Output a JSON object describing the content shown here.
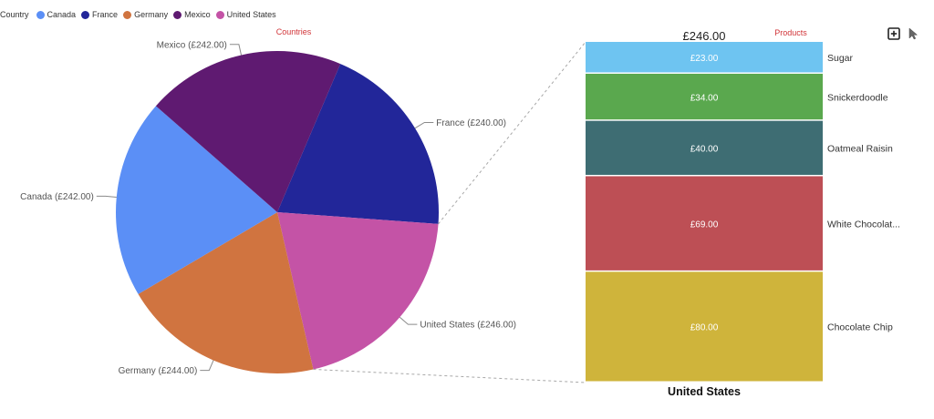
{
  "legend": {
    "title": "Country",
    "items": [
      {
        "label": "Canada",
        "color": "#5b8ff6"
      },
      {
        "label": "France",
        "color": "#222699"
      },
      {
        "label": "Germany",
        "color": "#d07440"
      },
      {
        "label": "Mexico",
        "color": "#5f1a71"
      },
      {
        "label": "United States",
        "color": "#c453a6"
      }
    ]
  },
  "toolbar": {
    "expand_icon": "plus-square-icon",
    "pointer_icon": "cursor-arrow-icon"
  },
  "chart_data": [
    {
      "type": "pie",
      "title": "Countries",
      "series": [
        {
          "category": "France",
          "value": 240,
          "label": "France (£240.00)",
          "color": "#222699"
        },
        {
          "category": "United States",
          "value": 246,
          "label": "United States (£246.00)",
          "color": "#c453a6",
          "selected": true
        },
        {
          "category": "Germany",
          "value": 244,
          "label": "Germany (£244.00)",
          "color": "#d07440"
        },
        {
          "category": "Canada",
          "value": 242,
          "label": "Canada (£242.00)",
          "color": "#5b8ff6"
        },
        {
          "category": "Mexico",
          "value": 242,
          "label": "Mexico (£242.00)",
          "color": "#5f1a71"
        }
      ]
    },
    {
      "type": "bar",
      "stacked": true,
      "title": "Products",
      "total_label": "£246.00",
      "category_label": "United States",
      "series": [
        {
          "name": "Sugar",
          "value": 23,
          "label": "£23.00",
          "color": "#6ec4f1"
        },
        {
          "name": "Snickerdoodle",
          "value": 34,
          "label": "£34.00",
          "color": "#5aa84e"
        },
        {
          "name": "Oatmeal Raisin",
          "value": 40,
          "label": "£40.00",
          "color": "#3e6d73"
        },
        {
          "name": "White Chocolat...",
          "value": 69,
          "label": "£69.00",
          "color": "#bd4f55"
        },
        {
          "name": "Chocolate Chip",
          "value": 80,
          "label": "£80.00",
          "color": "#cfb43b"
        }
      ]
    }
  ]
}
